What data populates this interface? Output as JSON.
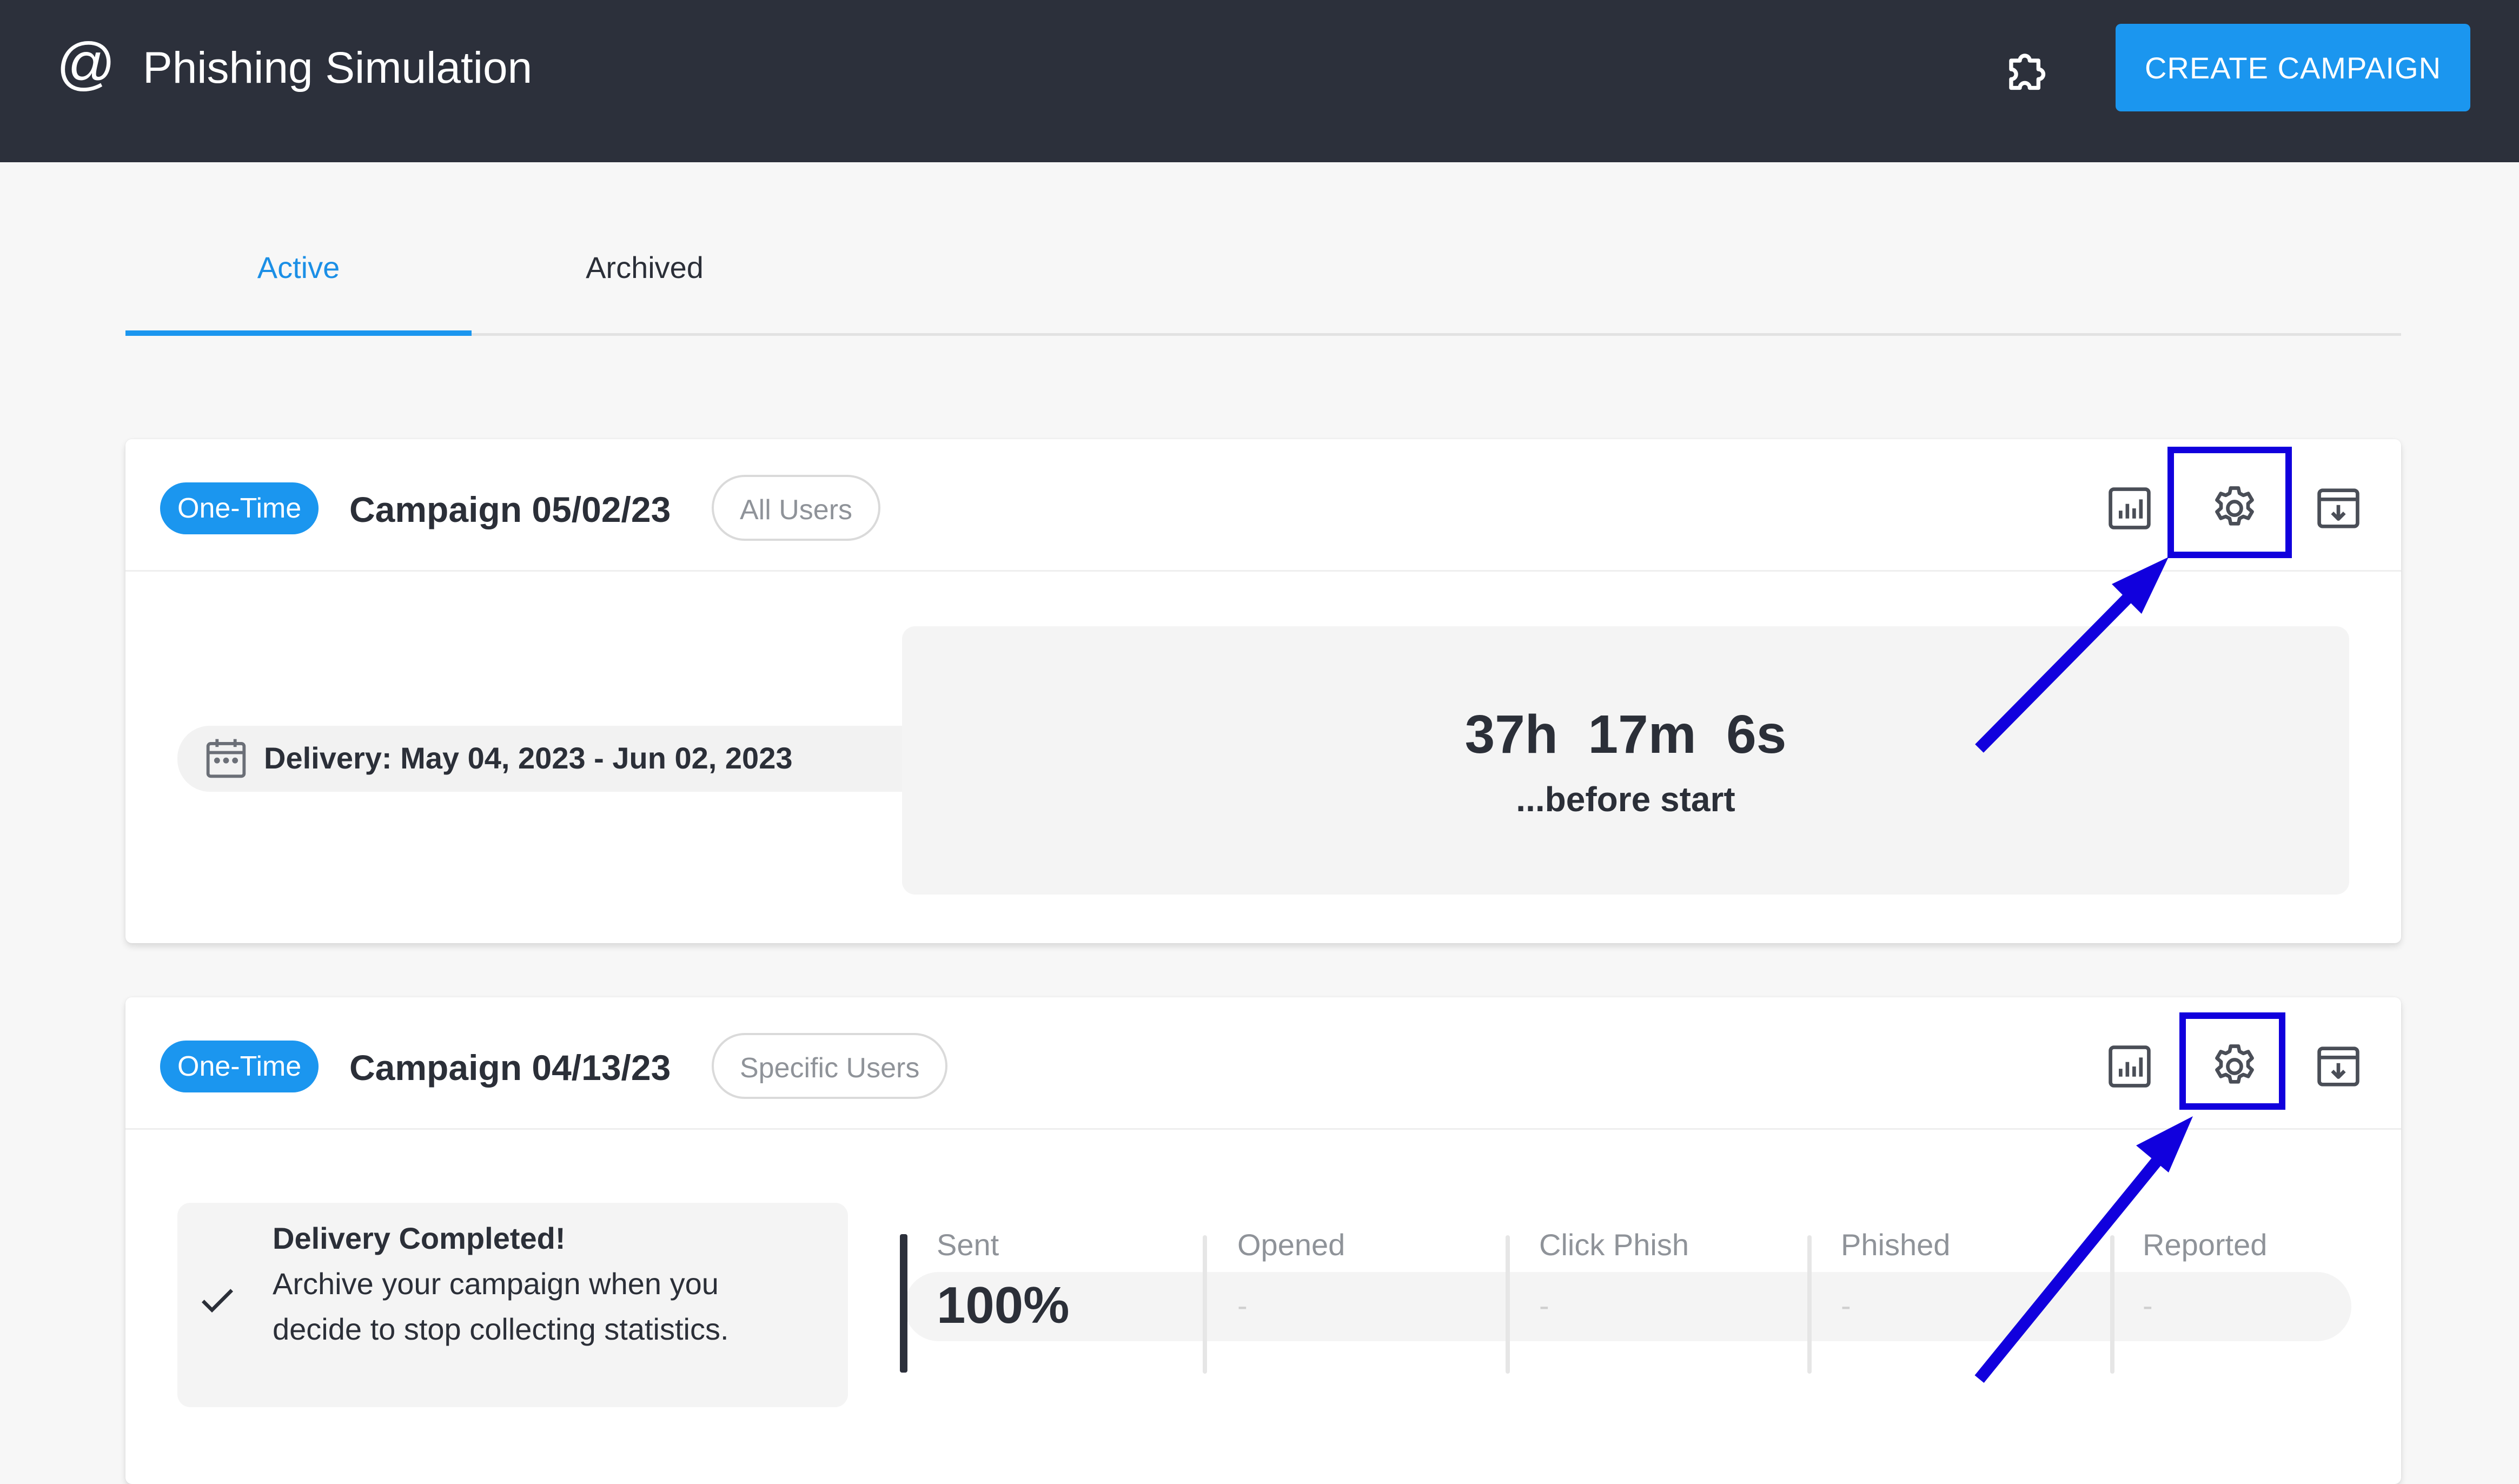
{
  "header": {
    "app_icon": "at-sign-icon",
    "title": "Phishing Simulation",
    "extension_icon": "puzzle-icon",
    "create_button": "CREATE CAMPAIGN"
  },
  "tabs": [
    {
      "label": "Active",
      "active": true
    },
    {
      "label": "Archived",
      "active": false
    }
  ],
  "campaigns": [
    {
      "type": "One-Time",
      "name": "Campaign 05/02/23",
      "audience": "All Users",
      "actions": [
        "stats-icon",
        "settings-icon",
        "archive-icon"
      ],
      "delivery": "Delivery: May 04, 2023 - Jun 02, 2023",
      "countdown": "37h  17m  6s",
      "countdown_caption": "...before start"
    },
    {
      "type": "One-Time",
      "name": "Campaign 04/13/23",
      "audience": "Specific Users",
      "actions": [
        "stats-icon",
        "settings-icon",
        "archive-icon"
      ],
      "completed_title": "Delivery Completed!",
      "completed_desc": "Archive your campaign when you decide to stop collecting statistics.",
      "stats": [
        {
          "label": "Sent",
          "value": "100%"
        },
        {
          "label": "Opened",
          "value": "-"
        },
        {
          "label": "Click Phish",
          "value": "-"
        },
        {
          "label": "Phished",
          "value": "-"
        },
        {
          "label": "Reported",
          "value": "-"
        }
      ]
    }
  ],
  "colors": {
    "header_bg": "#2c303b",
    "accent": "#1b96ef",
    "annotation": "#1100dd"
  }
}
